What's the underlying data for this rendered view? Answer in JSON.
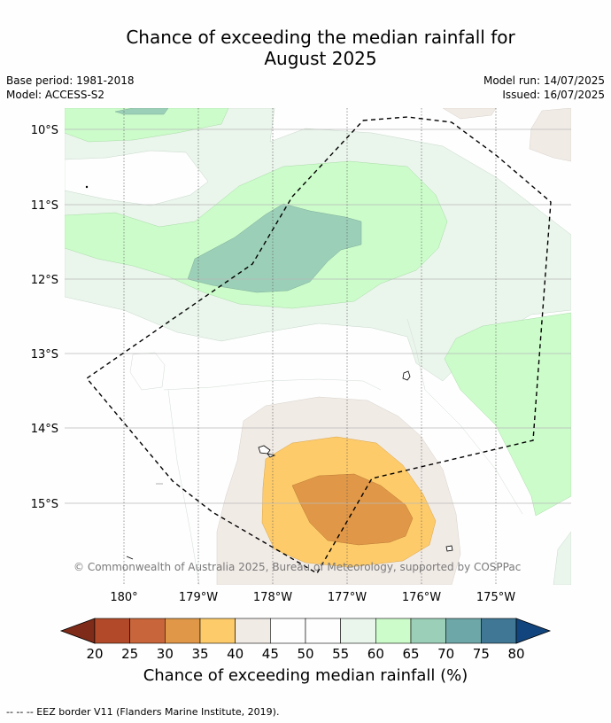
{
  "title": {
    "line1": "Chance of exceeding the median rainfall for",
    "line2": "August 2025"
  },
  "meta": {
    "base_period": "Base period: 1981-2018",
    "model": "Model: ACCESS-S2",
    "model_run": "Model run: 14/07/2025",
    "issued": "Issued: 16/07/2025"
  },
  "map": {
    "lat_labels": [
      "10°S",
      "11°S",
      "12°S",
      "13°S",
      "14°S",
      "15°S"
    ],
    "lon_labels": [
      "180°",
      "179°W",
      "178°W",
      "177°W",
      "176°W",
      "175°W"
    ],
    "copyright": "© Commonwealth of Australia 2025, Bureau of Meteorology, supported by COSPPac"
  },
  "legend": {
    "ticks": [
      "20",
      "25",
      "30",
      "35",
      "40",
      "45",
      "50",
      "55",
      "60",
      "65",
      "70",
      "75",
      "80"
    ],
    "colors": [
      "#7f2b19",
      "#b24a2a",
      "#c9653a",
      "#e09848",
      "#fecb6a",
      "#f1ebe6",
      "#fdfefd",
      "#fdfefd",
      "#eaf5ec",
      "#ccfcca",
      "#9ccfb8",
      "#6ea7a8",
      "#3f7795",
      "#12457e"
    ],
    "label": "Chance of exceeding median rainfall (%)"
  },
  "footnote": "--  --  -- EEZ border V11 (Flanders Marine Institute, 2019)."
}
